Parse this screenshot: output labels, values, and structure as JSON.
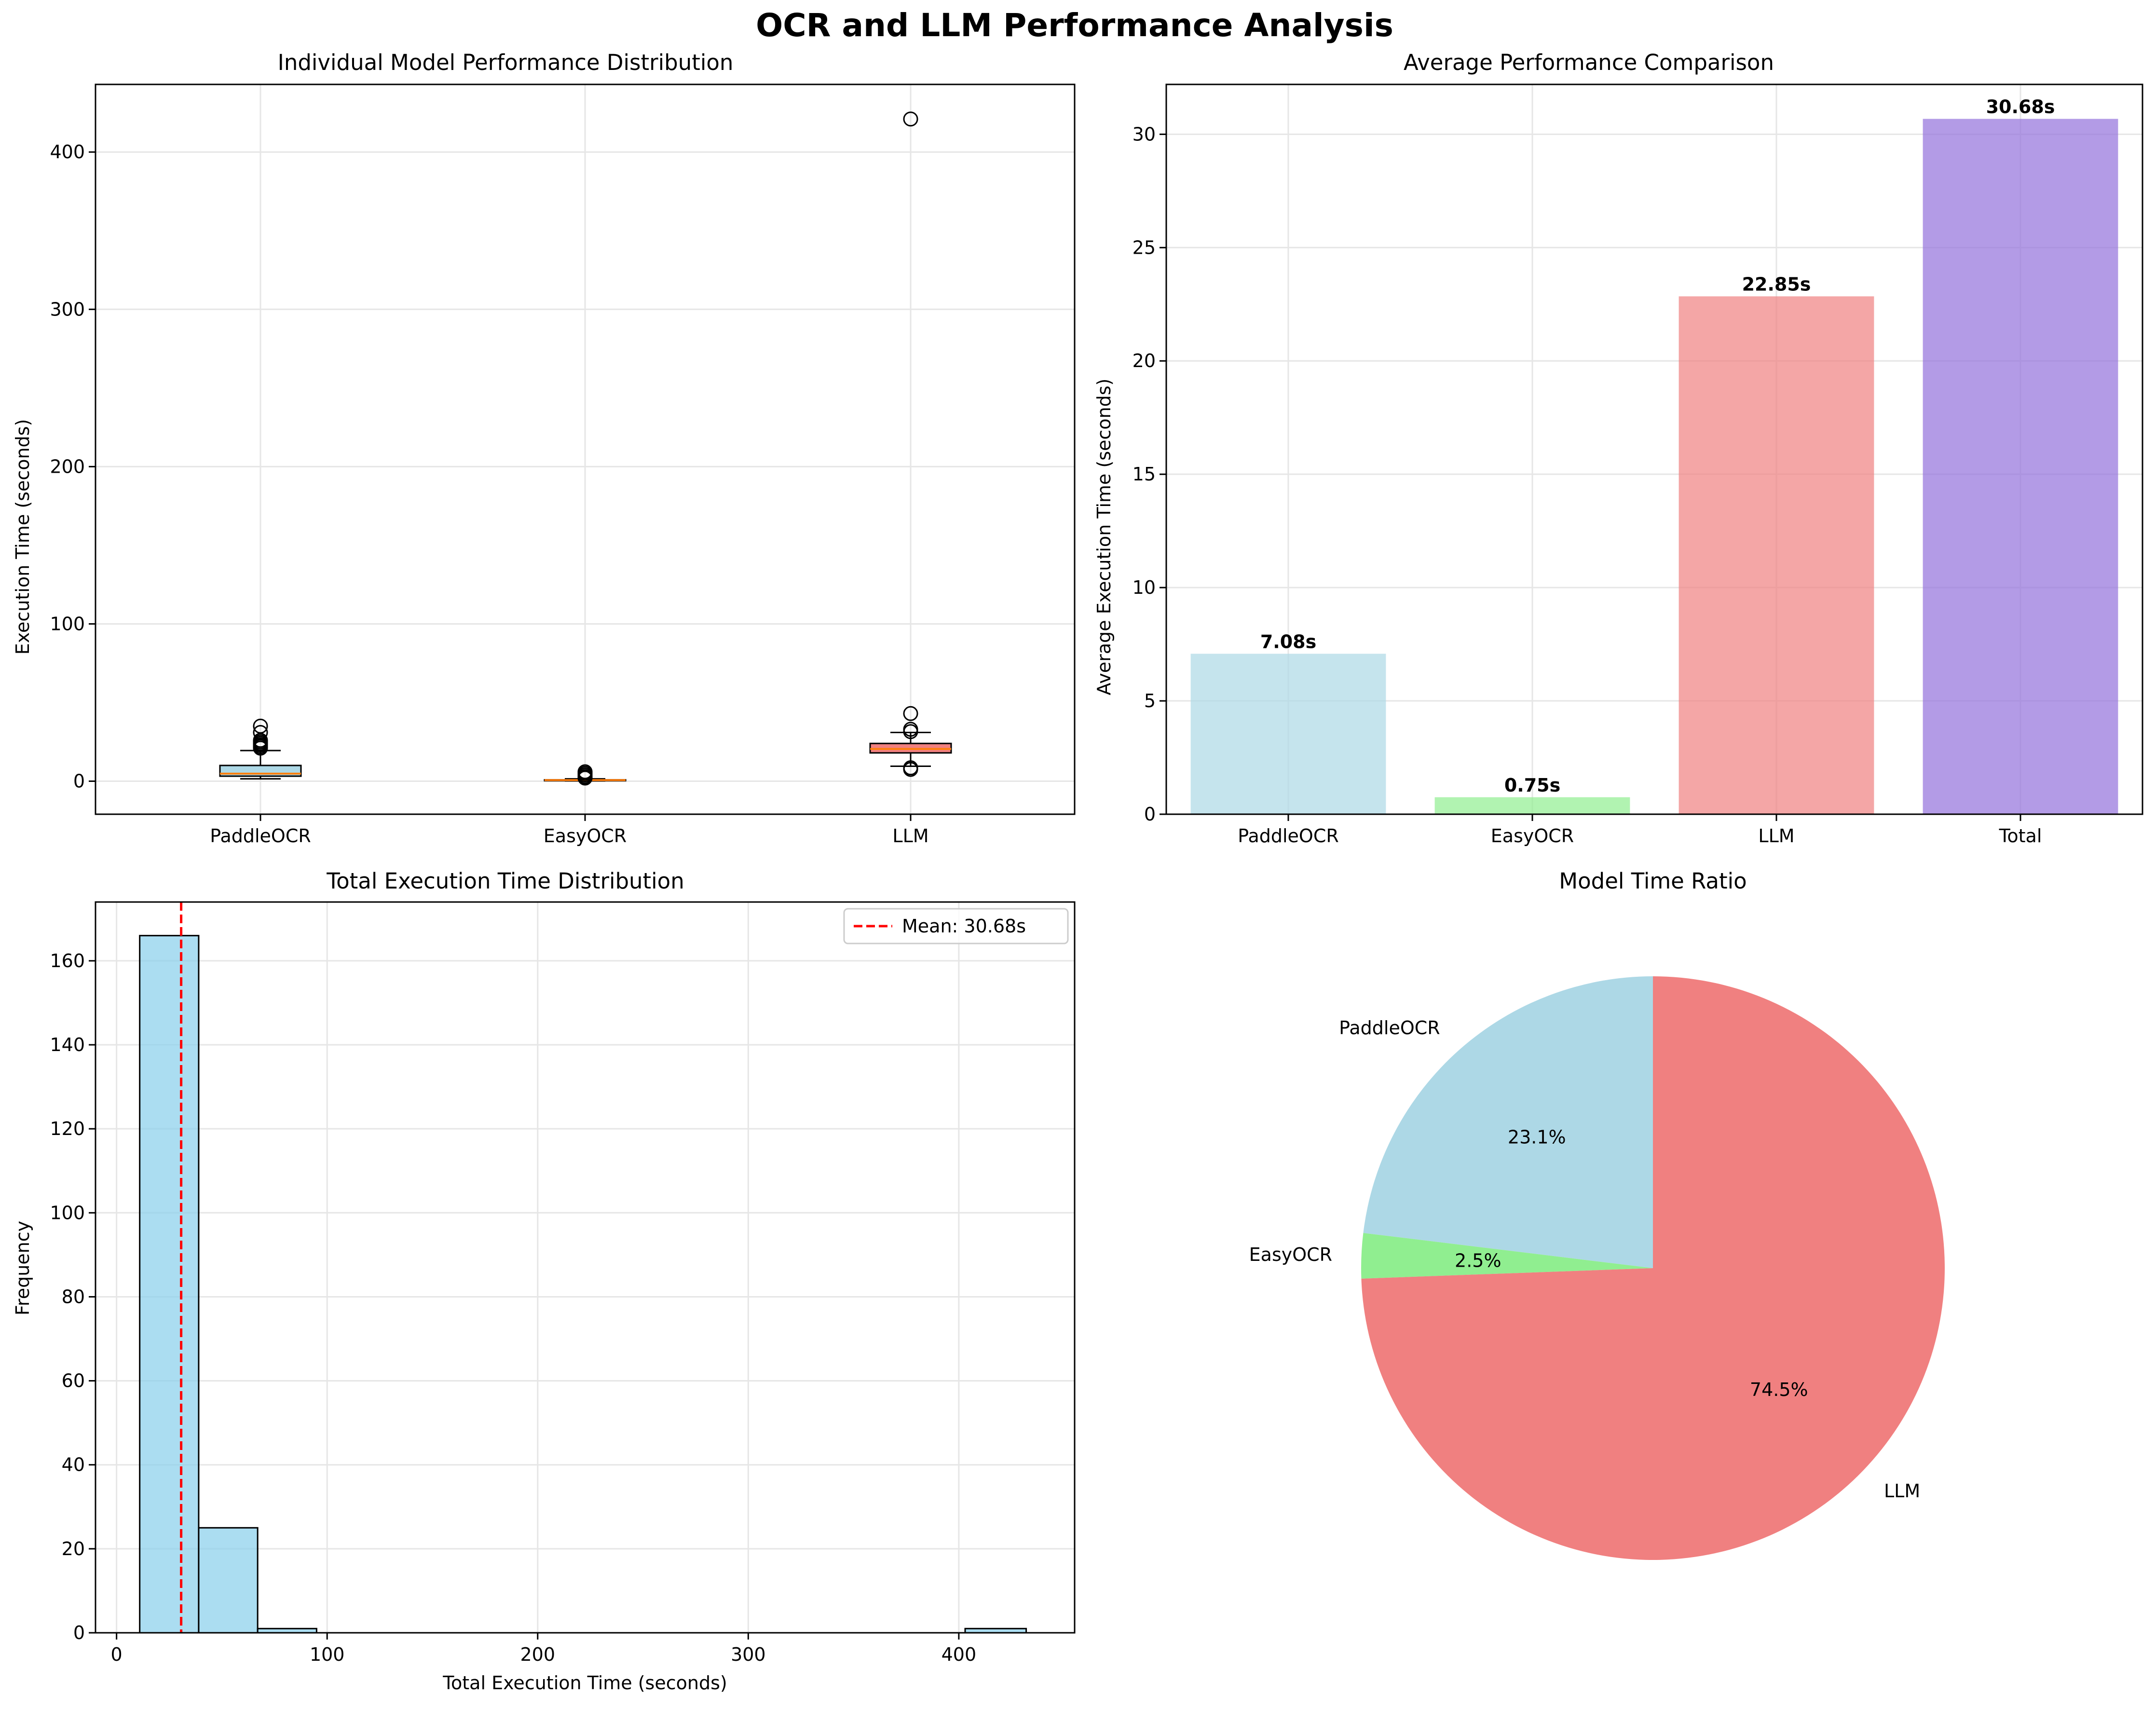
{
  "figure": {
    "title": "OCR and LLM Performance Analysis"
  },
  "chart_data": [
    {
      "type": "box",
      "title": "Individual Model Performance Distribution",
      "xlabel": "",
      "ylabel": "Execution Time (seconds)",
      "ylim": [
        -21,
        443
      ],
      "yticks": [
        0,
        100,
        200,
        300,
        400
      ],
      "grid": true,
      "boxes": [
        {
          "category": "PaddleOCR",
          "color": "#ADD8E6",
          "whisker_low": 1.5,
          "q1": 3.2,
          "median": 4.8,
          "q3": 10,
          "whisker_high": 19.5,
          "outliers": [
            21,
            22,
            23,
            24,
            25,
            26,
            31,
            35
          ]
        },
        {
          "category": "EasyOCR",
          "color": "#90EE90",
          "whisker_low": 0.2,
          "q1": 0.5,
          "median": 0.7,
          "q3": 0.9,
          "whisker_high": 1.5,
          "outliers": [
            2,
            2.5,
            3,
            4,
            5,
            6
          ]
        },
        {
          "category": "LLM",
          "color": "#F08080",
          "whisker_low": 9.5,
          "q1": 18,
          "median": 20.5,
          "q3": 24,
          "whisker_high": 31,
          "outliers": [
            7.5,
            8.5,
            31.5,
            33,
            43,
            421
          ]
        }
      ]
    },
    {
      "type": "bar",
      "title": "Average Performance Comparison",
      "xlabel": "",
      "ylabel": "Average Execution Time (seconds)",
      "ylim": [
        0,
        32.2
      ],
      "yticks": [
        0,
        5,
        10,
        15,
        20,
        25,
        30
      ],
      "grid": true,
      "categories": [
        "PaddleOCR",
        "EasyOCR",
        "LLM",
        "Total"
      ],
      "values": [
        7.08,
        0.75,
        22.85,
        30.68
      ],
      "data_labels": [
        "7.08s",
        "0.75s",
        "22.85s",
        "30.68s"
      ],
      "colors": [
        "#ADD8E6",
        "#90EE90",
        "#F08080",
        "#9370DB"
      ]
    },
    {
      "type": "histogram",
      "title": "Total Execution Time Distribution",
      "xlabel": "Total Execution Time (seconds)",
      "ylabel": "Frequency",
      "xlim": [
        -10,
        455
      ],
      "ylim": [
        0,
        174
      ],
      "xticks": [
        0,
        100,
        200,
        300,
        400
      ],
      "yticks": [
        0,
        20,
        40,
        60,
        80,
        100,
        120,
        140,
        160
      ],
      "grid": true,
      "color": "#87CEEB",
      "bins": [
        {
          "x0": 11,
          "x1": 39,
          "count": 166
        },
        {
          "x0": 39,
          "x1": 67,
          "count": 25
        },
        {
          "x0": 67,
          "x1": 95,
          "count": 1
        },
        {
          "x0": 95,
          "x1": 123,
          "count": 0
        },
        {
          "x0": 123,
          "x1": 151,
          "count": 0
        },
        {
          "x0": 151,
          "x1": 179,
          "count": 0
        },
        {
          "x0": 179,
          "x1": 207,
          "count": 0
        },
        {
          "x0": 207,
          "x1": 235,
          "count": 0
        },
        {
          "x0": 235,
          "x1": 263,
          "count": 0
        },
        {
          "x0": 263,
          "x1": 291,
          "count": 0
        },
        {
          "x0": 291,
          "x1": 319,
          "count": 0
        },
        {
          "x0": 319,
          "x1": 347,
          "count": 0
        },
        {
          "x0": 347,
          "x1": 375,
          "count": 0
        },
        {
          "x0": 375,
          "x1": 403,
          "count": 0
        },
        {
          "x0": 403,
          "x1": 432,
          "count": 1
        }
      ],
      "mean_line": {
        "value": 30.68,
        "label": "Mean: 30.68s",
        "color": "#FF0000"
      },
      "legend": "top-right"
    },
    {
      "type": "pie",
      "title": "Model Time Ratio",
      "slices": [
        {
          "label": "PaddleOCR",
          "pct_label": "23.1%",
          "value": 23.1,
          "color": "#ADD8E6"
        },
        {
          "label": "EasyOCR",
          "pct_label": "2.5%",
          "value": 2.5,
          "color": "#90EE90"
        },
        {
          "label": "LLM",
          "pct_label": "74.5%",
          "value": 74.5,
          "color": "#F08080"
        }
      ],
      "startangle": 90,
      "counterclockwise": true
    }
  ]
}
